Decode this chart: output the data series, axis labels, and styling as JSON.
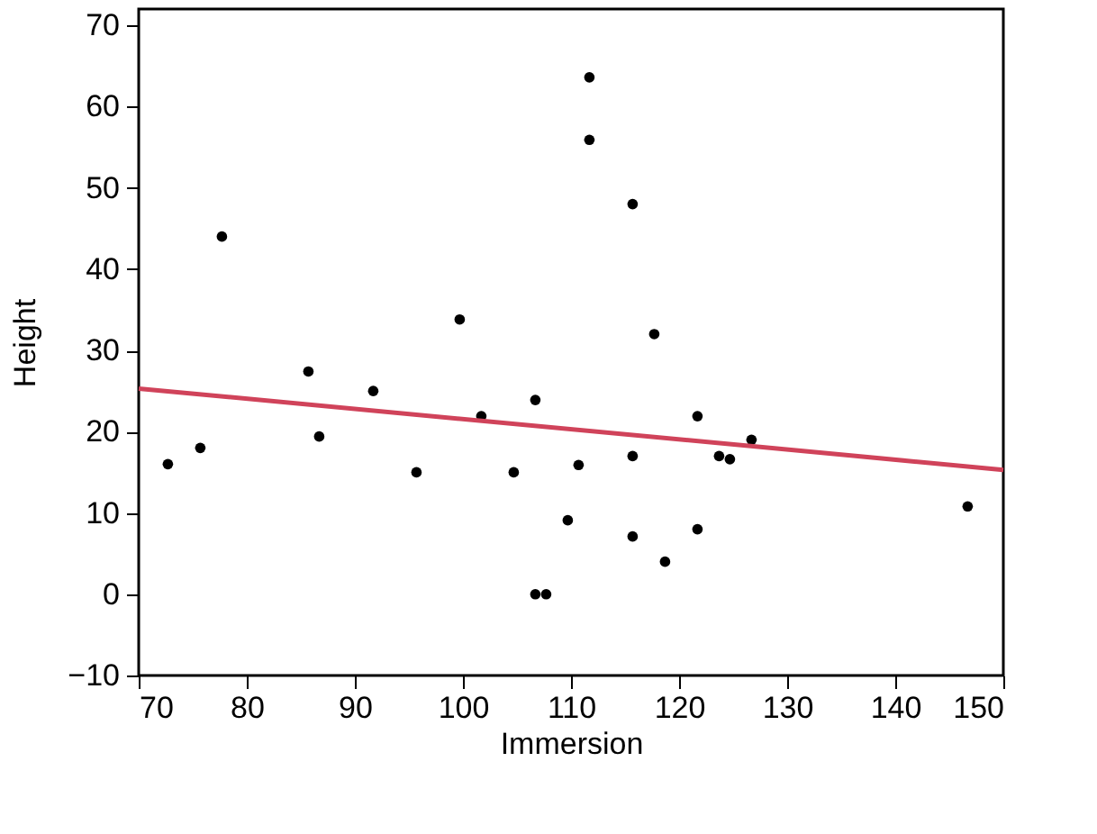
{
  "chart_data": {
    "type": "scatter",
    "xlabel": "Immersion",
    "ylabel": "Height",
    "xlim": [
      70,
      150
    ],
    "ylim": [
      -10,
      72
    ],
    "xticks": [
      70,
      80,
      90,
      100,
      110,
      120,
      130,
      140,
      150
    ],
    "yticks": [
      -10,
      0,
      10,
      20,
      30,
      40,
      50,
      60,
      70
    ],
    "grid": false,
    "series": [
      {
        "marker": "circle",
        "color": "#000000",
        "x": [
          72.7,
          75.7,
          77.7,
          85.7,
          86.7,
          91.7,
          95.7,
          99.7,
          101.7,
          104.7,
          106.7,
          106.7,
          107.7,
          109.7,
          110.7,
          111.7,
          111.7,
          115.7,
          115.7,
          115.7,
          117.7,
          118.7,
          121.7,
          121.7,
          123.7,
          124.7,
          126.7,
          146.7
        ],
        "values": [
          16,
          18,
          44,
          27.4,
          19.4,
          25,
          15,
          33.8,
          21.9,
          15,
          23.9,
          0,
          0,
          9.1,
          15.9,
          63.6,
          55.9,
          48,
          17,
          7.1,
          32,
          4,
          21.9,
          8,
          17,
          16.6,
          19,
          10.8
        ]
      },
      {
        "type": "line",
        "color": "#d0435a",
        "line_style": "solid",
        "x": [
          70,
          150
        ],
        "values": [
          25.3,
          15.3
        ]
      }
    ]
  }
}
